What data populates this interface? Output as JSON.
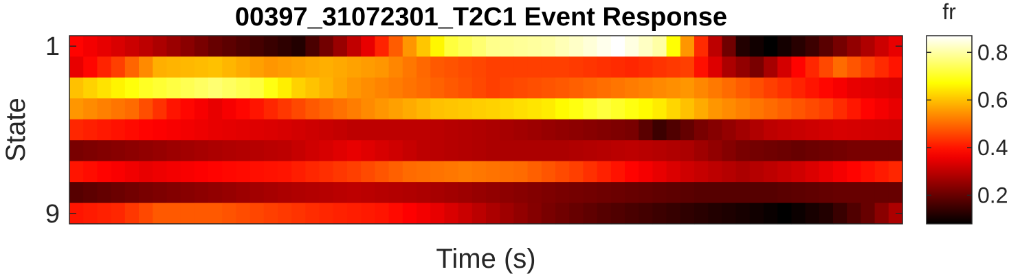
{
  "chart_data": {
    "type": "heatmap",
    "title": "00397_31072301_T2C1 Event Response",
    "xlabel": "Time (s)",
    "ylabel": "State",
    "y_ticks": [
      {
        "label": "1",
        "state": 1
      },
      {
        "label": "9",
        "state": 9
      }
    ],
    "colormap": "hot",
    "colorbar": {
      "label": "fr",
      "range": [
        0.08,
        0.87
      ],
      "ticks": [
        {
          "label": "0.2",
          "value": 0.2
        },
        {
          "label": "0.4",
          "value": 0.4
        },
        {
          "label": "0.6",
          "value": 0.6
        },
        {
          "label": "0.8",
          "value": 0.8
        }
      ]
    },
    "n_time_bins": 60,
    "rows": [
      {
        "state": 1,
        "keys": [
          [
            0,
            0.38
          ],
          [
            5,
            0.3
          ],
          [
            10,
            0.2
          ],
          [
            16,
            0.12
          ],
          [
            21,
            0.35
          ],
          [
            24,
            0.55
          ],
          [
            27,
            0.72
          ],
          [
            30,
            0.78
          ],
          [
            34,
            0.8
          ],
          [
            37,
            0.84
          ],
          [
            39,
            0.87
          ],
          [
            42,
            0.8
          ],
          [
            44,
            0.55
          ],
          [
            46,
            0.3
          ],
          [
            48,
            0.12
          ],
          [
            50,
            0.08
          ],
          [
            53,
            0.15
          ],
          [
            56,
            0.25
          ],
          [
            59,
            0.35
          ]
        ]
      },
      {
        "state": 2,
        "keys": [
          [
            0,
            0.35
          ],
          [
            3,
            0.45
          ],
          [
            6,
            0.58
          ],
          [
            10,
            0.6
          ],
          [
            14,
            0.55
          ],
          [
            18,
            0.58
          ],
          [
            22,
            0.55
          ],
          [
            26,
            0.48
          ],
          [
            30,
            0.45
          ],
          [
            35,
            0.45
          ],
          [
            40,
            0.42
          ],
          [
            44,
            0.45
          ],
          [
            47,
            0.28
          ],
          [
            49,
            0.22
          ],
          [
            52,
            0.38
          ],
          [
            55,
            0.5
          ],
          [
            57,
            0.45
          ],
          [
            59,
            0.4
          ]
        ]
      },
      {
        "state": 3,
        "keys": [
          [
            0,
            0.6
          ],
          [
            5,
            0.7
          ],
          [
            10,
            0.76
          ],
          [
            13,
            0.72
          ],
          [
            16,
            0.62
          ],
          [
            20,
            0.55
          ],
          [
            25,
            0.5
          ],
          [
            30,
            0.45
          ],
          [
            35,
            0.48
          ],
          [
            40,
            0.52
          ],
          [
            44,
            0.55
          ],
          [
            47,
            0.5
          ],
          [
            50,
            0.45
          ],
          [
            53,
            0.4
          ],
          [
            56,
            0.35
          ],
          [
            59,
            0.33
          ]
        ]
      },
      {
        "state": 4,
        "keys": [
          [
            0,
            0.55
          ],
          [
            4,
            0.5
          ],
          [
            7,
            0.4
          ],
          [
            10,
            0.35
          ],
          [
            13,
            0.4
          ],
          [
            17,
            0.48
          ],
          [
            22,
            0.55
          ],
          [
            26,
            0.6
          ],
          [
            30,
            0.62
          ],
          [
            34,
            0.65
          ],
          [
            38,
            0.72
          ],
          [
            42,
            0.65
          ],
          [
            46,
            0.55
          ],
          [
            50,
            0.5
          ],
          [
            54,
            0.45
          ],
          [
            57,
            0.38
          ],
          [
            59,
            0.35
          ]
        ]
      },
      {
        "state": 5,
        "keys": [
          [
            0,
            0.42
          ],
          [
            5,
            0.38
          ],
          [
            10,
            0.35
          ],
          [
            15,
            0.33
          ],
          [
            20,
            0.3
          ],
          [
            25,
            0.3
          ],
          [
            30,
            0.28
          ],
          [
            35,
            0.25
          ],
          [
            40,
            0.22
          ],
          [
            42,
            0.15
          ],
          [
            45,
            0.22
          ],
          [
            50,
            0.3
          ],
          [
            55,
            0.33
          ],
          [
            59,
            0.32
          ]
        ]
      },
      {
        "state": 6,
        "keys": [
          [
            0,
            0.22
          ],
          [
            5,
            0.25
          ],
          [
            10,
            0.28
          ],
          [
            15,
            0.3
          ],
          [
            20,
            0.35
          ],
          [
            25,
            0.3
          ],
          [
            30,
            0.28
          ],
          [
            35,
            0.28
          ],
          [
            40,
            0.3
          ],
          [
            44,
            0.28
          ],
          [
            48,
            0.22
          ],
          [
            52,
            0.2
          ],
          [
            56,
            0.22
          ],
          [
            59,
            0.22
          ]
        ]
      },
      {
        "state": 7,
        "keys": [
          [
            0,
            0.4
          ],
          [
            5,
            0.35
          ],
          [
            10,
            0.38
          ],
          [
            15,
            0.4
          ],
          [
            20,
            0.45
          ],
          [
            24,
            0.5
          ],
          [
            28,
            0.52
          ],
          [
            32,
            0.5
          ],
          [
            36,
            0.45
          ],
          [
            40,
            0.38
          ],
          [
            44,
            0.32
          ],
          [
            48,
            0.28
          ],
          [
            52,
            0.32
          ],
          [
            56,
            0.38
          ],
          [
            59,
            0.42
          ]
        ]
      },
      {
        "state": 8,
        "keys": [
          [
            0,
            0.18
          ],
          [
            5,
            0.22
          ],
          [
            10,
            0.25
          ],
          [
            15,
            0.28
          ],
          [
            20,
            0.3
          ],
          [
            25,
            0.28
          ],
          [
            30,
            0.25
          ],
          [
            35,
            0.22
          ],
          [
            40,
            0.2
          ],
          [
            45,
            0.18
          ],
          [
            50,
            0.18
          ],
          [
            55,
            0.2
          ],
          [
            59,
            0.2
          ]
        ]
      },
      {
        "state": 9,
        "keys": [
          [
            0,
            0.4
          ],
          [
            3,
            0.42
          ],
          [
            6,
            0.48
          ],
          [
            10,
            0.48
          ],
          [
            14,
            0.45
          ],
          [
            18,
            0.42
          ],
          [
            22,
            0.4
          ],
          [
            26,
            0.35
          ],
          [
            30,
            0.28
          ],
          [
            34,
            0.22
          ],
          [
            38,
            0.18
          ],
          [
            42,
            0.15
          ],
          [
            46,
            0.12
          ],
          [
            49,
            0.1
          ],
          [
            51,
            0.08
          ],
          [
            54,
            0.12
          ],
          [
            57,
            0.2
          ],
          [
            59,
            0.28
          ]
        ]
      }
    ]
  }
}
